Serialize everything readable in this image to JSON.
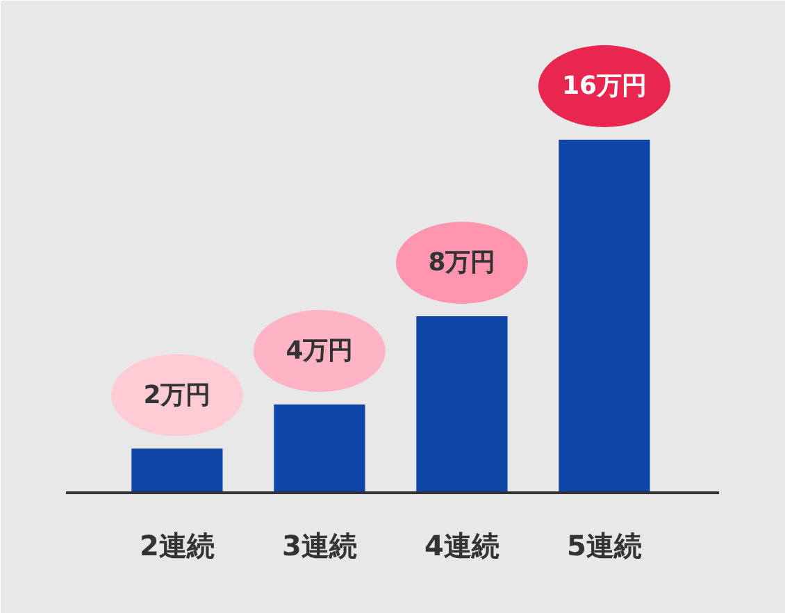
{
  "chart_data": {
    "type": "bar",
    "categories": [
      "2連続",
      "3連続",
      "4連続",
      "5連続"
    ],
    "values": [
      2,
      4,
      8,
      16
    ],
    "color": "#0e46a8",
    "value_labels": [
      "2万円",
      "4万円",
      "8万円",
      "16万円"
    ],
    "grid": false
  }
}
